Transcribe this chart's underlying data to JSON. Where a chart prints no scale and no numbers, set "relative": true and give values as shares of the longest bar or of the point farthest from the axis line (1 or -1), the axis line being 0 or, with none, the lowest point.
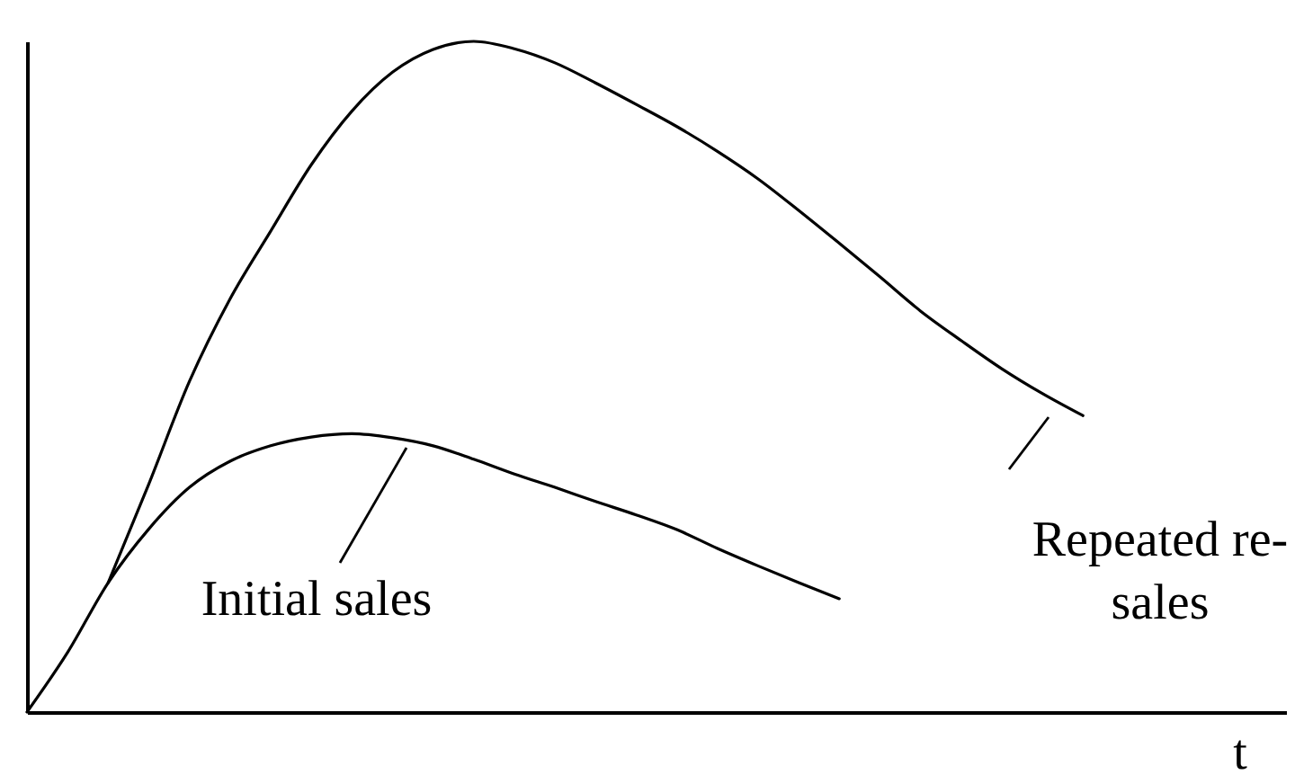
{
  "chart_data": {
    "type": "line",
    "xlabel": "t",
    "relative": true,
    "legend": "bottom",
    "categories": [
      null,
      null,
      null,
      null,
      null,
      null,
      null,
      null,
      null,
      null,
      null,
      null,
      null,
      null,
      null,
      null,
      null,
      null,
      null,
      null,
      null,
      null,
      null,
      null,
      null,
      null,
      null,
      null,
      null,
      null,
      null,
      null
    ],
    "series": [
      {
        "name": "Initial sales",
        "color": "#000000",
        "values": [
          0,
          0.089,
          0.193,
          0.273,
          0.335,
          0.374,
          0.397,
          0.41,
          0.415,
          0.409,
          0.397,
          0.377,
          0.355,
          0.335,
          0.314,
          0.294,
          0.272,
          0.244,
          0.218,
          0.193,
          0.169,
          null,
          null,
          null,
          null,
          null,
          null,
          null,
          null,
          null,
          null,
          null
        ]
      },
      {
        "name": "Repeated re-sales",
        "color": "#000000",
        "values": [
          null,
          null,
          0.193,
          0.34,
          0.493,
          0.616,
          0.717,
          0.816,
          0.896,
          0.954,
          0.988,
          1,
          0.989,
          0.968,
          0.938,
          0.906,
          0.873,
          0.836,
          0.795,
          0.748,
          0.699,
          0.649,
          0.598,
          0.554,
          0.512,
          0.475,
          0.442,
          null,
          null,
          null,
          null,
          null
        ]
      }
    ]
  }
}
